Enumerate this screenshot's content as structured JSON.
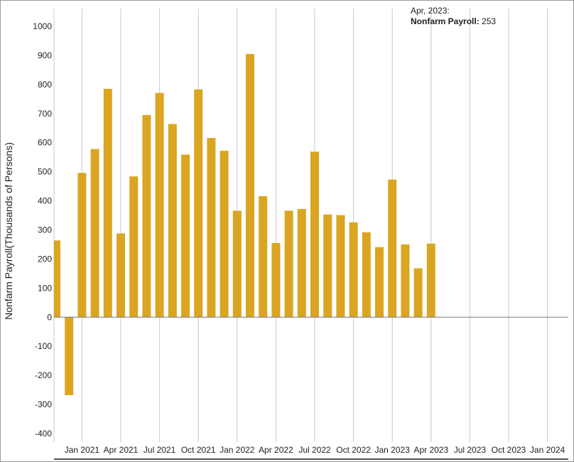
{
  "tooltip": {
    "date": "Apr, 2023:",
    "series_name": "Nonfarm Payroll:",
    "value": "253"
  },
  "chart_data": {
    "type": "bar",
    "ylabel": "Nonfarm Payroll(Thousands of Persons)",
    "ylim": [
      -400,
      1000
    ],
    "yticks": [
      1000,
      900,
      800,
      700,
      600,
      500,
      400,
      300,
      200,
      100,
      0,
      -100,
      -200,
      -300,
      -400
    ],
    "xticks": [
      "Jan 2021",
      "Apr 2021",
      "Jul 2021",
      "Oct 2021",
      "Jan 2022",
      "Apr 2022",
      "Jul 2022",
      "Oct 2022",
      "Jan 2023",
      "Apr 2023",
      "Jul 2023",
      "Oct 2023",
      "Jan 2024"
    ],
    "bar_color": "#DAA520",
    "grid": "vertical",
    "series": [
      {
        "name": "Nonfarm Payroll",
        "categories": [
          "Nov 2020",
          "Dec 2020",
          "Jan 2021",
          "Feb 2021",
          "Mar 2021",
          "Apr 2021",
          "May 2021",
          "Jun 2021",
          "Jul 2021",
          "Aug 2021",
          "Sep 2021",
          "Oct 2021",
          "Nov 2021",
          "Dec 2021",
          "Jan 2022",
          "Feb 2022",
          "Mar 2022",
          "Apr 2022",
          "May 2022",
          "Jun 2022",
          "Jul 2022",
          "Aug 2022",
          "Sep 2022",
          "Oct 2022",
          "Nov 2022",
          "Dec 2022",
          "Jan 2023",
          "Feb 2023",
          "Mar 2023",
          "Apr 2023"
        ],
        "values": [
          264,
          -268,
          496,
          578,
          785,
          288,
          484,
          695,
          771,
          664,
          559,
          783,
          616,
          572,
          366,
          905,
          416,
          255,
          366,
          372,
          569,
          353,
          351,
          326,
          292,
          241,
          473,
          250,
          168,
          253
        ]
      }
    ]
  }
}
